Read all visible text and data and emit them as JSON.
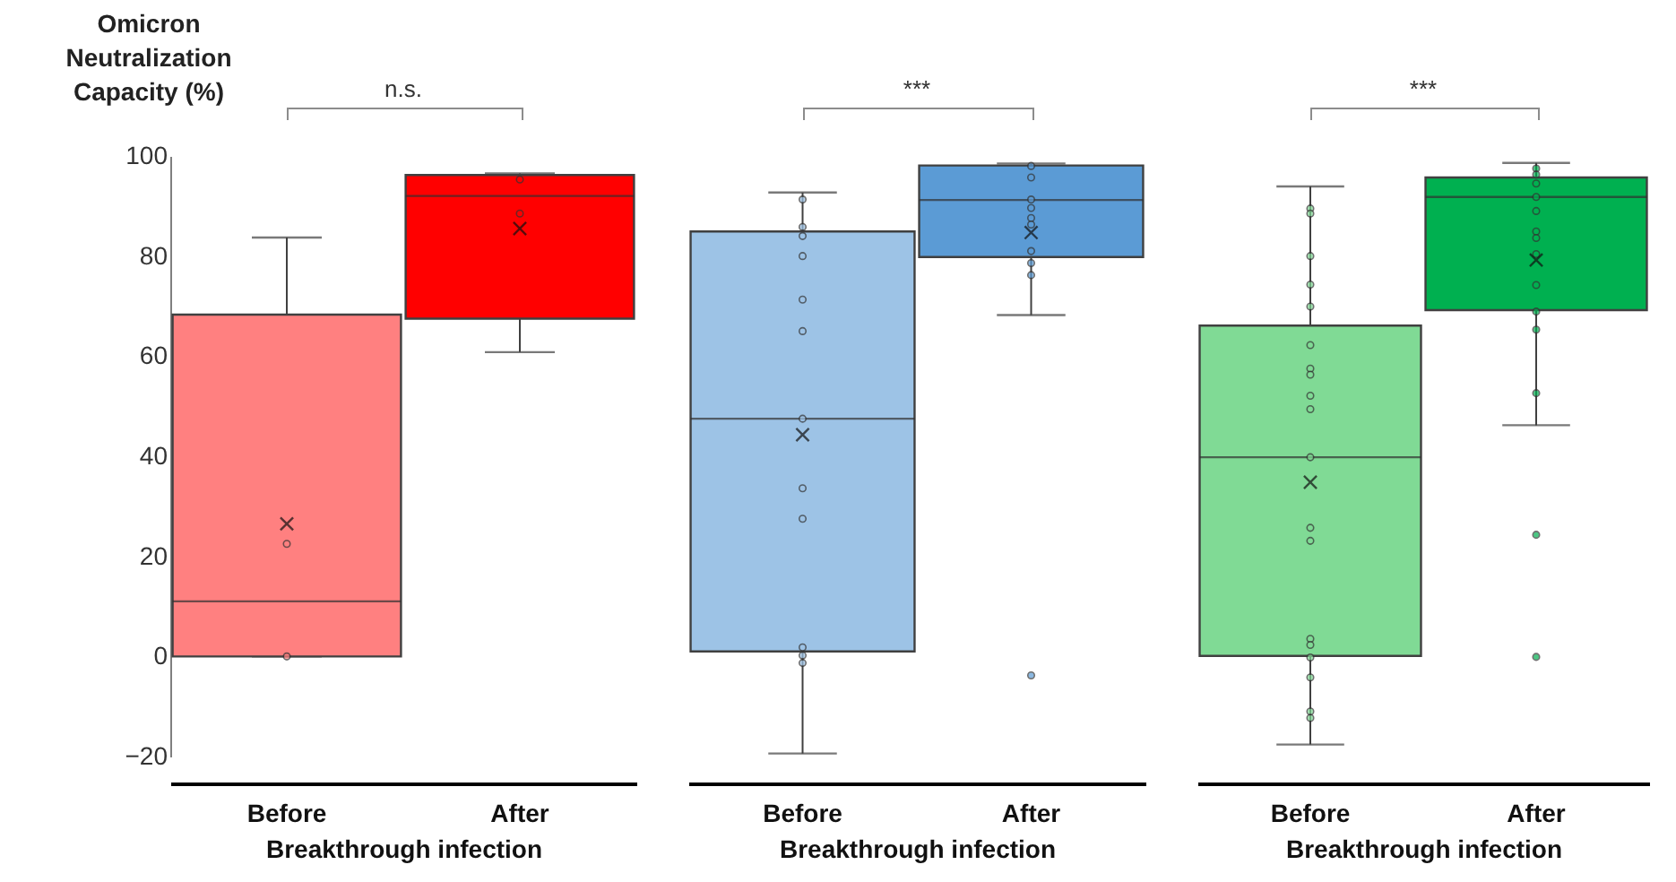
{
  "chart_data": [
    {
      "type": "box",
      "ylabel": "Omicron Neutralization Capacity (%)",
      "xlabel": "Breakthrough infection",
      "annotations": [
        "n.s."
      ],
      "categories": [
        "Before",
        "After"
      ],
      "colors": [
        "#ff8080",
        "#ff0000"
      ],
      "ylim": [
        -20,
        100
      ],
      "yticks": [
        -20,
        0,
        20,
        40,
        60,
        80,
        100
      ],
      "boxes": [
        {
          "low": 0,
          "q1": 0,
          "median": 11,
          "q3": 68.3,
          "high": 83.7,
          "mean": 26.5
        },
        {
          "low": 60.8,
          "q1": 67.5,
          "median": 92,
          "q3": 96.2,
          "high": 96.5,
          "mean": 85.5
        }
      ],
      "series": [
        {
          "type": "scatter",
          "x": [
            "Before",
            "Before"
          ],
          "values": [
            22.5,
            0
          ],
          "color": "#ff8080"
        },
        {
          "type": "scatter",
          "x": [
            "After",
            "After"
          ],
          "values": [
            95.3,
            88.5
          ],
          "color": "#ff0000"
        }
      ]
    },
    {
      "type": "box",
      "xlabel": "Breakthrough infection",
      "annotations": [
        "***"
      ],
      "categories": [
        "Before",
        "After"
      ],
      "colors": [
        "#9dc3e6",
        "#5b9bd5"
      ],
      "ylim": [
        -20,
        100
      ],
      "yticks": [
        -20,
        0,
        20,
        40,
        60,
        80,
        100
      ],
      "tick_labels": "x",
      "boxes": [
        {
          "low": -19.4,
          "q1": 1,
          "median": 47.5,
          "q3": 84.9,
          "high": 92.7,
          "mean": 44.3
        },
        {
          "low": 68.2,
          "q1": 79.8,
          "median": 91.2,
          "q3": 98.1,
          "high": 98.5,
          "mean": 84.7,
          "outliers": [
            -3.8
          ]
        }
      ],
      "series": [
        {
          "type": "scatter",
          "x": [
            "Before",
            "Before",
            "Before",
            "Before",
            "Before",
            "Before",
            "Before",
            "Before",
            "Before",
            "Before",
            "Before",
            "Before"
          ],
          "values": [
            91.3,
            85.8,
            84,
            80,
            71.3,
            65,
            47.5,
            33.6,
            27.5,
            1.8,
            0.2,
            -1.3
          ],
          "color": "#9dc3e6"
        },
        {
          "type": "scatter",
          "x": [
            "After",
            "After",
            "After",
            "After",
            "After",
            "After",
            "After",
            "After",
            "After"
          ],
          "values": [
            98,
            95.7,
            91.3,
            89.6,
            87.6,
            86.3,
            81,
            78.6,
            76.2
          ],
          "color": "#5b9bd5"
        }
      ]
    },
    {
      "type": "box",
      "xlabel": "Breakthrough infection",
      "annotations": [
        "***"
      ],
      "categories": [
        "Before",
        "After"
      ],
      "colors": [
        "#80da95",
        "#00b050"
      ],
      "ylim": [
        -20,
        100
      ],
      "yticks": [
        -20,
        0,
        20,
        40,
        60,
        80,
        100
      ],
      "tick_labels": "x",
      "boxes": [
        {
          "low": -17.6,
          "q1": 0.1,
          "median": 39.8,
          "q3": 66.1,
          "high": 93.9,
          "mean": 34.8
        },
        {
          "low": 46.2,
          "q1": 69.2,
          "median": 91.8,
          "q3": 95.7,
          "high": 98.6,
          "mean": 79.2,
          "outliers": [
            24.3,
            -0.1
          ]
        }
      ],
      "series": [
        {
          "type": "scatter",
          "x": [
            "Before",
            "Before",
            "Before",
            "Before",
            "Before",
            "Before",
            "Before",
            "Before",
            "Before",
            "Before",
            "Before",
            "Before",
            "Before",
            "Before",
            "Before",
            "Before",
            "Before",
            "Before",
            "Before"
          ],
          "values": [
            89.5,
            88.5,
            80,
            74.3,
            69.9,
            62.2,
            57.5,
            56.3,
            52.1,
            49.4,
            39.8,
            25.7,
            23.1,
            3.5,
            2.3,
            -0.2,
            -4.2,
            -11,
            -12.3
          ],
          "color": "#80da95"
        },
        {
          "type": "scatter",
          "x": [
            "After",
            "After",
            "After",
            "After",
            "After",
            "After",
            "After",
            "After",
            "After",
            "After",
            "After",
            "After"
          ],
          "values": [
            97.5,
            96.3,
            94.5,
            91.8,
            89,
            84.9,
            83.6,
            80.4,
            74.2,
            68.9,
            65.3,
            52.6
          ],
          "color": "#00b050"
        }
      ]
    }
  ]
}
